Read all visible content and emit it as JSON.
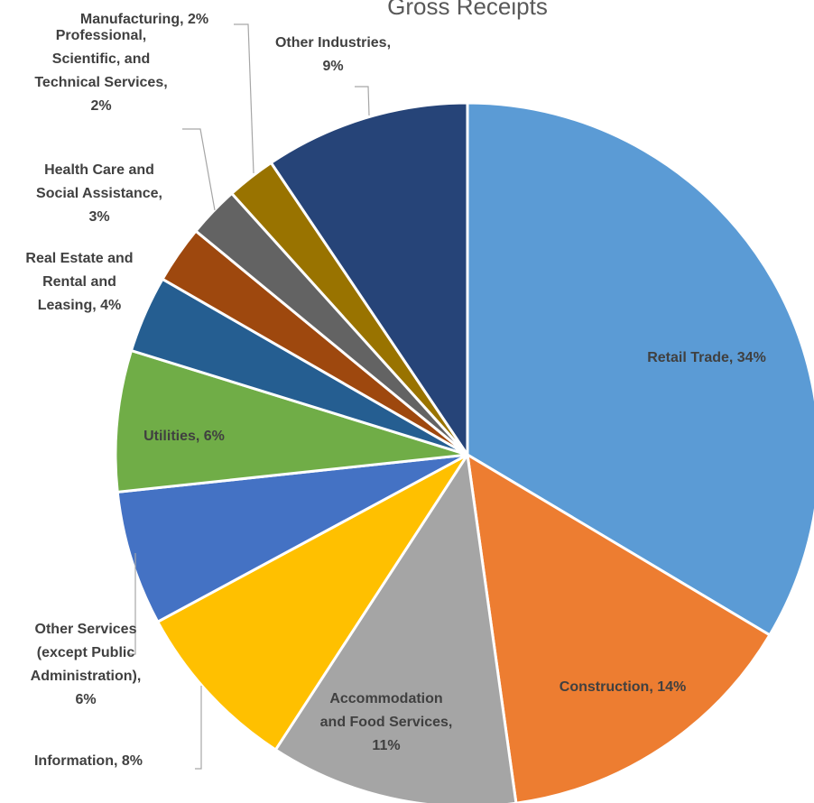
{
  "chart_data": {
    "type": "pie",
    "title": "Gross Receipts",
    "slices": [
      {
        "label": "Retail Trade, 34%",
        "value": 34.2,
        "color": "#5b9bd5"
      },
      {
        "label": "Construction, 14%",
        "value": 14.5,
        "color": "#ed7d31"
      },
      {
        "label": "Accommodation and Food Services, 11%",
        "value": 11.6,
        "color": "#a5a5a5"
      },
      {
        "label": "Information, 8%",
        "value": 8.1,
        "color": "#ffc000"
      },
      {
        "label": "Other Services (except Public Administration), 6%",
        "value": 6.3,
        "color": "#4472c4"
      },
      {
        "label": "Utilities, 6%",
        "value": 6.6,
        "color": "#70ad47"
      },
      {
        "label": "Real Estate and Rental and Leasing, 4%",
        "value": 3.6,
        "color": "#255e91"
      },
      {
        "label": "Health Care and Social Assistance, 3%",
        "value": 2.7,
        "color": "#9e480e"
      },
      {
        "label": "Professional, Scientific, and Technical Services, 2%",
        "value": 2.4,
        "color": "#636363"
      },
      {
        "label": "Manufacturing, 2%",
        "value": 2.3,
        "color": "#997300"
      },
      {
        "label": "Other Industries, 9%",
        "value": 9.6,
        "color": "#264478"
      }
    ]
  }
}
